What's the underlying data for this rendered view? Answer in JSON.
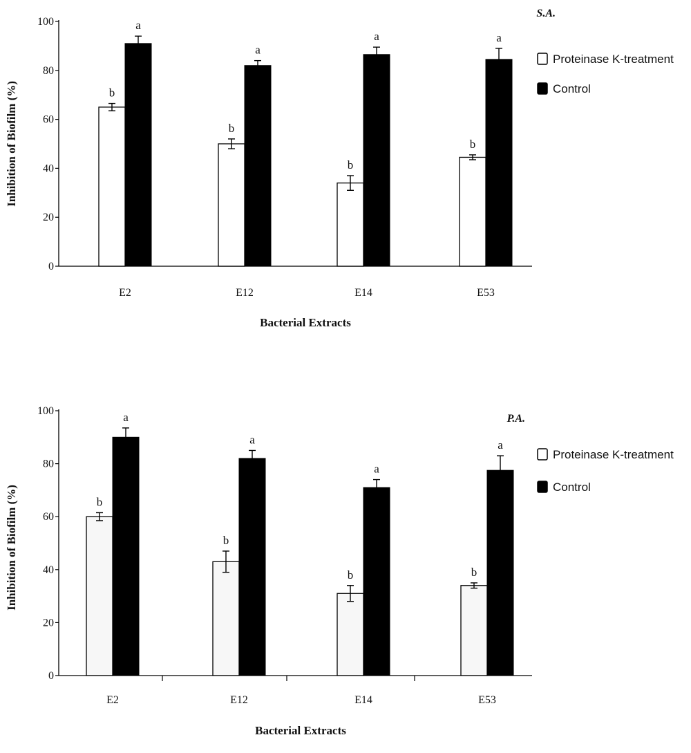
{
  "chart_data": [
    {
      "type": "bar",
      "panel_label": "S.A.",
      "categories": [
        "E2",
        "E12",
        "E14",
        "E53"
      ],
      "xlabel": "Bacterial Extracts",
      "ylabel": "Inhibition of Biofilm (%)",
      "ylim": [
        0,
        100
      ],
      "yticks": [
        0,
        20,
        40,
        60,
        80,
        100
      ],
      "legend_position": "right",
      "series": [
        {
          "name": "Proteinase K-treatment",
          "color": "#ffffff",
          "values": [
            65,
            50,
            34,
            44.5
          ],
          "errors": [
            1.5,
            2,
            3,
            1
          ],
          "letters": [
            "b",
            "b",
            "b",
            "b"
          ]
        },
        {
          "name": "Control",
          "color": "#000000",
          "values": [
            91,
            82,
            86.5,
            84.5
          ],
          "errors": [
            3,
            2,
            3,
            4.5
          ],
          "letters": [
            "a",
            "a",
            "a",
            "a"
          ]
        }
      ]
    },
    {
      "type": "bar",
      "panel_label": "P.A.",
      "categories": [
        "E2",
        "E12",
        "E14",
        "E53"
      ],
      "xlabel": "Bacterial Extracts",
      "ylabel": "Inhibition of Biofilm (%)",
      "ylim": [
        0,
        100
      ],
      "yticks": [
        0,
        20,
        40,
        60,
        80,
        100
      ],
      "legend_position": "right",
      "series": [
        {
          "name": "Proteinase K-treatment",
          "color": "#f7f7f7",
          "values": [
            60,
            43,
            31,
            34
          ],
          "errors": [
            1.5,
            4,
            3,
            1
          ],
          "letters": [
            "b",
            "b",
            "b",
            "b"
          ]
        },
        {
          "name": "Control",
          "color": "#000000",
          "values": [
            90,
            82,
            71,
            77.5
          ],
          "errors": [
            3.5,
            3,
            3,
            5.5
          ],
          "letters": [
            "a",
            "a",
            "a",
            "a"
          ]
        }
      ]
    }
  ]
}
